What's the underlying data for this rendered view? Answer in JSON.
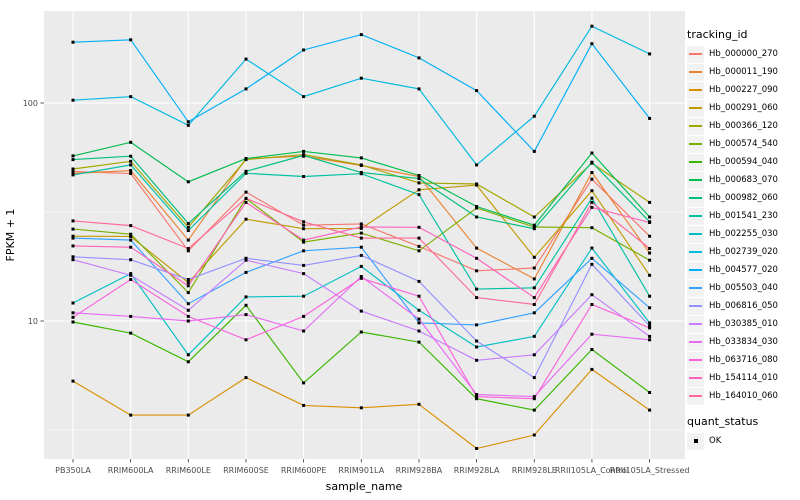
{
  "chart_data": {
    "type": "line",
    "title": "",
    "xlabel": "sample_name",
    "ylabel": "FPKM + 1",
    "y_scale": "log10",
    "ylim": [
      2.2,
      270
    ],
    "grid": "white major+minor on gray panel",
    "panel_color": "#EBEBEB",
    "point_marker": {
      "shape": "square",
      "color": "#000000"
    },
    "legend_position": "right",
    "legend_titles": {
      "tracking": "tracking_id",
      "quant": "quant_status"
    },
    "quant_status_items": [
      {
        "label": "OK",
        "marker": "black-square"
      }
    ],
    "y_major_ticks": [
      {
        "label": "100",
        "value": 100
      },
      {
        "label": "10",
        "value": 10
      }
    ],
    "y_minor_gridlines": [
      31.623,
      3.1623
    ],
    "categories": [
      "PB350LA",
      "RRIM600LA",
      "RRIM600LE",
      "RRIM600SE",
      "RRIM600PE",
      "RRIM901LA",
      "RRIM928BA",
      "RRIM928LA",
      "RRIM928LE",
      "RRII105LA_Control",
      "RRII105LA_Stressed"
    ],
    "series": [
      {
        "name": "Hb_000000_270",
        "color": "#F8766D",
        "values": [
          48.5,
          47.5,
          21.0,
          39.0,
          27.5,
          27.9,
          22.0,
          17.0,
          17.5,
          44.7,
          24.5
        ]
      },
      {
        "name": "Hb_000011_190",
        "color": "#EA8331",
        "values": [
          47.5,
          49.0,
          23.5,
          55.6,
          57.0,
          51.7,
          46.0,
          21.6,
          15.6,
          48.0,
          20.5
        ]
      },
      {
        "name": "Hb_000227_090",
        "color": "#D89000",
        "values": [
          5.3,
          3.7,
          3.7,
          5.5,
          4.1,
          4.0,
          4.15,
          2.6,
          3.0,
          6.0,
          3.9
        ]
      },
      {
        "name": "Hb_000291_060",
        "color": "#C09B00",
        "values": [
          24.5,
          24.4,
          15.0,
          29.3,
          26.5,
          26.6,
          40.0,
          42.0,
          19.6,
          39.6,
          16.2
        ]
      },
      {
        "name": "Hb_000366_120",
        "color": "#A3A500",
        "values": [
          49.8,
          54.0,
          26.9,
          55.0,
          58.0,
          52.0,
          43.0,
          42.5,
          30.0,
          53.0,
          35.0
        ]
      },
      {
        "name": "Hb_000574_540",
        "color": "#7CAE00",
        "values": [
          26.4,
          25.0,
          13.5,
          36.5,
          23.0,
          25.3,
          21.0,
          33.0,
          27.0,
          26.8,
          19.0
        ]
      },
      {
        "name": "Hb_000594_040",
        "color": "#39B600",
        "values": [
          9.9,
          8.8,
          6.5,
          11.8,
          5.2,
          8.9,
          8.0,
          4.4,
          3.9,
          7.4,
          4.7
        ]
      },
      {
        "name": "Hb_000683_070",
        "color": "#00BB4E",
        "values": [
          57.2,
          66.0,
          43.5,
          55.6,
          60.0,
          56.0,
          46.5,
          33.5,
          27.5,
          59.0,
          30.0
        ]
      },
      {
        "name": "Hb_000982_060",
        "color": "#00BF7D",
        "values": [
          55.0,
          57.0,
          28.0,
          48.6,
          57.5,
          48.0,
          45.0,
          30.0,
          26.5,
          53.5,
          28.5
        ]
      },
      {
        "name": "Hb_001541_230",
        "color": "#00C1A3",
        "values": [
          46.8,
          52.0,
          26.0,
          47.6,
          46.0,
          47.4,
          38.0,
          14.0,
          14.2,
          36.6,
          13.0
        ]
      },
      {
        "name": "Hb_002255_030",
        "color": "#00BFC4",
        "values": [
          12.1,
          16.5,
          7.0,
          12.9,
          13.0,
          17.8,
          11.2,
          7.6,
          8.5,
          21.6,
          9.8
        ]
      },
      {
        "name": "Hb_002739_020",
        "color": "#00BAE0",
        "values": [
          103,
          107,
          79,
          159,
          107,
          130,
          116,
          52,
          87,
          225,
          168
        ]
      },
      {
        "name": "Hb_004577_020",
        "color": "#00B0F6",
        "values": [
          190,
          195,
          82,
          116,
          175,
          206,
          161,
          114,
          60,
          187,
          85
        ]
      },
      {
        "name": "Hb_005503_040",
        "color": "#35A2FF",
        "values": [
          24.0,
          23.5,
          12.0,
          16.7,
          21.0,
          21.8,
          9.8,
          9.6,
          10.9,
          19.4,
          11.5
        ]
      },
      {
        "name": "Hb_006816_050",
        "color": "#9590FF",
        "values": [
          19.7,
          19.1,
          15.5,
          19.4,
          18.0,
          20.0,
          15.2,
          8.1,
          5.5,
          18.2,
          9.5
        ]
      },
      {
        "name": "Hb_030385_010",
        "color": "#C77CFF",
        "values": [
          19.1,
          16.2,
          11.2,
          19.0,
          16.5,
          11.1,
          9.0,
          6.6,
          7.0,
          13.2,
          8.5
        ]
      },
      {
        "name": "Hb_033834_030",
        "color": "#E76BF3",
        "values": [
          10.9,
          10.5,
          10.0,
          10.7,
          9.0,
          16.0,
          10.2,
          4.6,
          4.5,
          8.7,
          8.2
        ]
      },
      {
        "name": "Hb_063716_080",
        "color": "#FA62DB",
        "values": [
          10.4,
          15.5,
          10.5,
          8.2,
          10.5,
          15.7,
          13.0,
          4.5,
          4.4,
          11.9,
          9.3
        ]
      },
      {
        "name": "Hb_154114_010",
        "color": "#FF62BC",
        "values": [
          22.1,
          21.8,
          14.5,
          35.0,
          23.5,
          27.0,
          26.9,
          19.4,
          12.8,
          33.2,
          28.3
        ]
      },
      {
        "name": "Hb_164010_060",
        "color": "#FF6A98",
        "values": [
          28.8,
          27.4,
          21.5,
          36.5,
          28.5,
          24.0,
          24.0,
          12.8,
          11.9,
          35.0,
          21.5
        ]
      }
    ]
  }
}
